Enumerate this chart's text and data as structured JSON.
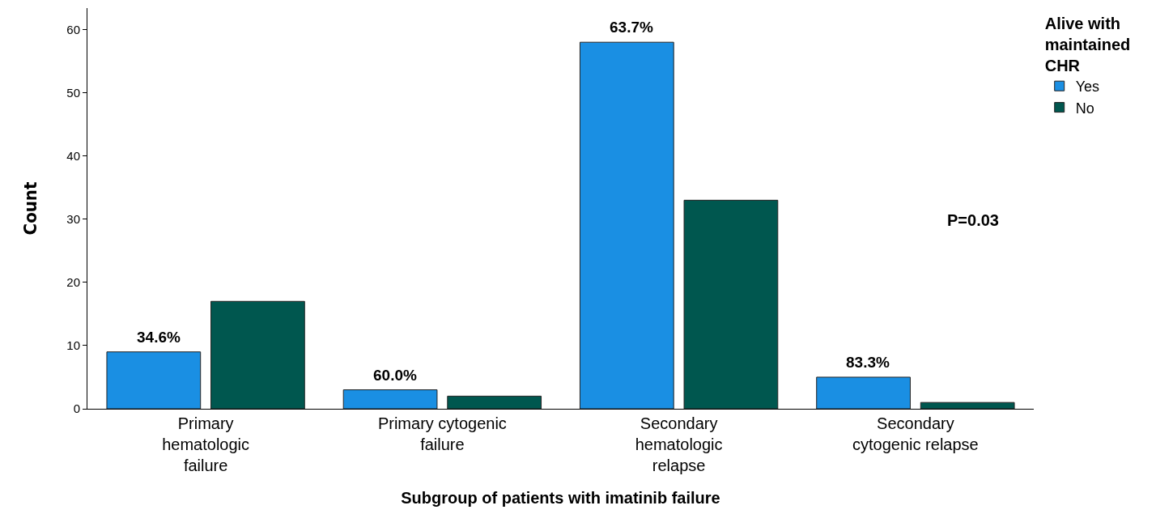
{
  "chart_data": {
    "type": "bar",
    "xlabel": "Subgroup of patients with imatinib failure",
    "ylabel": "Count",
    "legend_title": "Alive with maintained CHR",
    "categories": [
      "Primary hematologic failure",
      "Primary cytogenic failure",
      "Secondary hematologic relapse",
      "Secondary cytogenic relapse"
    ],
    "series": [
      {
        "name": "Yes",
        "color": "#1a8fe3",
        "values": [
          9,
          3,
          58,
          5
        ]
      },
      {
        "name": "No",
        "color": "#00574f",
        "values": [
          17,
          2,
          33,
          1
        ]
      }
    ],
    "ylim": [
      0,
      63.4
    ],
    "yticks": [
      0,
      10,
      20,
      30,
      40,
      50,
      60
    ],
    "grid": false,
    "legend": "top right",
    "annotations": [
      "34.6%",
      "60.0%",
      "63.7%",
      "83.3%",
      "P=0.03"
    ]
  }
}
